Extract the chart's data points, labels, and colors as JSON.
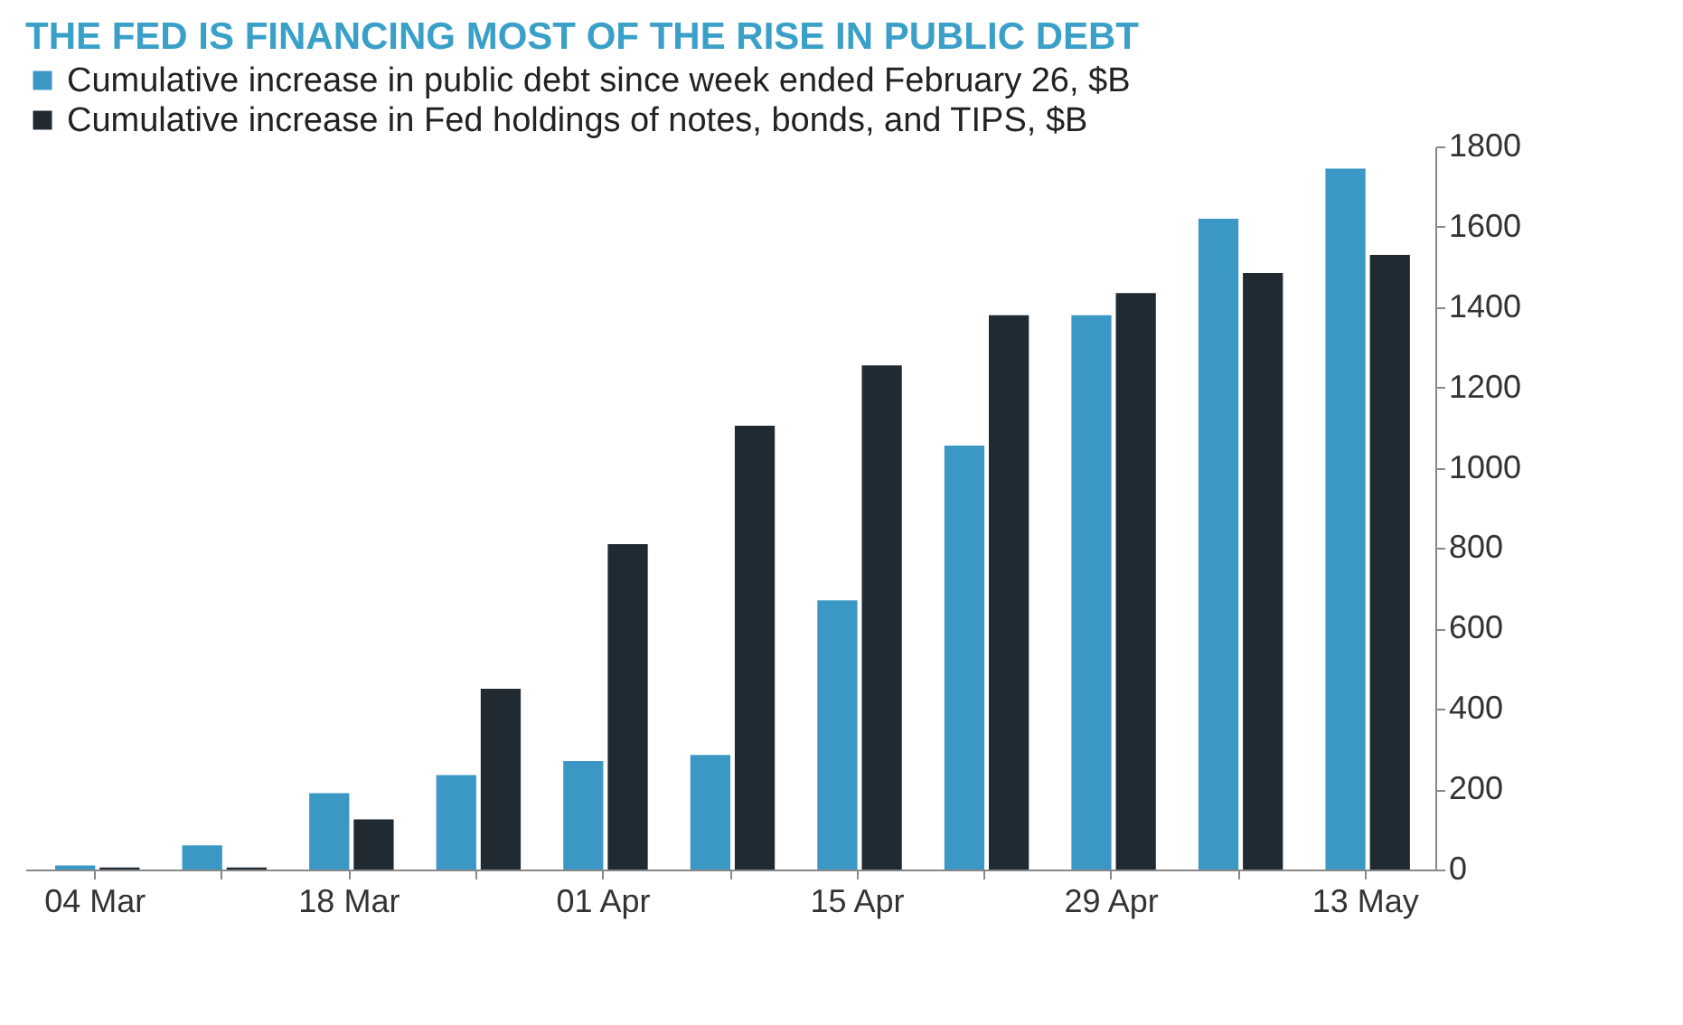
{
  "chart_data": {
    "type": "bar",
    "title": "THE FED IS FINANCING MOST OF THE RISE IN PUBLIC DEBT",
    "categories": [
      "04 Mar",
      null,
      "18 Mar",
      null,
      "01 Apr",
      null,
      "15 Apr",
      null,
      "29 Apr",
      null,
      "13 May"
    ],
    "series": [
      {
        "name": "Cumulative increase in public debt since week ended February 26, $B",
        "color": "#3b97c4",
        "values": [
          10,
          60,
          190,
          235,
          270,
          285,
          670,
          1055,
          1380,
          1620,
          1745
        ]
      },
      {
        "name": "Cumulative increase in Fed holdings of notes, bonds, and TIPS, $B",
        "color": "#1f2a33",
        "values": [
          5,
          5,
          125,
          450,
          810,
          1105,
          1255,
          1380,
          1435,
          1485,
          1530
        ]
      }
    ],
    "ylim": [
      0,
      1800
    ],
    "yticks": [
      0,
      200,
      400,
      600,
      800,
      1000,
      1200,
      1400,
      1600,
      1800
    ],
    "grid": false,
    "legend": "top left"
  }
}
